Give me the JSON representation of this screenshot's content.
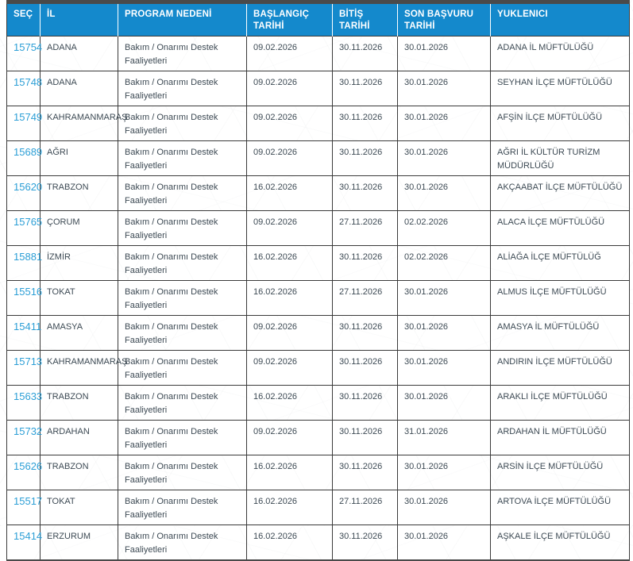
{
  "table": {
    "columns": [
      {
        "key": "sec",
        "label": "SEÇ"
      },
      {
        "key": "il",
        "label": "İL"
      },
      {
        "key": "program",
        "label": "PROGRAM NEDENİ"
      },
      {
        "key": "baslangic",
        "label": "BAŞLANGIÇ TARİHİ"
      },
      {
        "key": "bitis",
        "label": "BİTİŞ TARİHİ"
      },
      {
        "key": "son_basvuru",
        "label": "SON BAŞVURU TARİHİ"
      },
      {
        "key": "yuklenici",
        "label": "YUKLENICI"
      }
    ],
    "rows": [
      {
        "sec": "15754",
        "il": "ADANA",
        "program": "Bakım / Onarımı Destek Faaliyetleri",
        "baslangic": "09.02.2026",
        "bitis": "30.11.2026",
        "son_basvuru": "30.01.2026",
        "yuklenici": "ADANA İL MÜFTÜLÜĞÜ"
      },
      {
        "sec": "15748",
        "il": "ADANA",
        "program": "Bakım / Onarımı Destek Faaliyetleri",
        "baslangic": "09.02.2026",
        "bitis": "30.11.2026",
        "son_basvuru": "30.01.2026",
        "yuklenici": "SEYHAN İLÇE MÜFTÜLÜĞÜ"
      },
      {
        "sec": "15749",
        "il": "KAHRAMANMARAŞ",
        "program": "Bakım / Onarımı Destek Faaliyetleri",
        "baslangic": "09.02.2026",
        "bitis": "30.11.2026",
        "son_basvuru": "30.01.2026",
        "yuklenici": "AFŞİN İLÇE MÜFTÜLÜĞÜ"
      },
      {
        "sec": "15689",
        "il": "AĞRI",
        "program": "Bakım / Onarımı Destek Faaliyetleri",
        "baslangic": "09.02.2026",
        "bitis": "30.11.2026",
        "son_basvuru": "30.01.2026",
        "yuklenici": "AĞRI İL KÜLTÜR TURİZM MÜDÜRLÜĞÜ"
      },
      {
        "sec": "15620",
        "il": "TRABZON",
        "program": "Bakım / Onarımı Destek Faaliyetleri",
        "baslangic": "16.02.2026",
        "bitis": "30.11.2026",
        "son_basvuru": "30.01.2026",
        "yuklenici": "AKÇAABAT İLÇE MÜFTÜLÜĞÜ"
      },
      {
        "sec": "15765",
        "il": "ÇORUM",
        "program": "Bakım / Onarımı Destek Faaliyetleri",
        "baslangic": "09.02.2026",
        "bitis": "27.11.2026",
        "son_basvuru": "02.02.2026",
        "yuklenici": "ALACA İLÇE MÜFTÜLÜĞÜ"
      },
      {
        "sec": "15881",
        "il": "İZMİR",
        "program": "Bakım / Onarımı Destek Faaliyetleri",
        "baslangic": "16.02.2026",
        "bitis": "30.11.2026",
        "son_basvuru": "02.02.2026",
        "yuklenici": "ALİAĞA İLÇE MÜFTÜLÜĞ"
      },
      {
        "sec": "15516",
        "il": "TOKAT",
        "program": "Bakım / Onarımı Destek Faaliyetleri",
        "baslangic": "16.02.2026",
        "bitis": "27.11.2026",
        "son_basvuru": "30.01.2026",
        "yuklenici": "ALMUS İLÇE MÜFTÜLÜĞÜ"
      },
      {
        "sec": "15411",
        "il": "AMASYA",
        "program": "Bakım / Onarımı Destek Faaliyetleri",
        "baslangic": "09.02.2026",
        "bitis": "30.11.2026",
        "son_basvuru": "30.01.2026",
        "yuklenici": "AMASYA İL MÜFTÜLÜĞÜ"
      },
      {
        "sec": "15713",
        "il": "KAHRAMANMARAŞ",
        "program": "Bakım / Onarımı Destek Faaliyetleri",
        "baslangic": "09.02.2026",
        "bitis": "30.11.2026",
        "son_basvuru": "30.01.2026",
        "yuklenici": "ANDIRIN İLÇE MÜFTÜLÜĞÜ"
      },
      {
        "sec": "15633",
        "il": "TRABZON",
        "program": "Bakım / Onarımı Destek Faaliyetleri",
        "baslangic": "16.02.2026",
        "bitis": "30.11.2026",
        "son_basvuru": "30.01.2026",
        "yuklenici": "ARAKLI İLÇE MÜFTÜLÜĞÜ"
      },
      {
        "sec": "15732",
        "il": "ARDAHAN",
        "program": "Bakım / Onarımı Destek Faaliyetleri",
        "baslangic": "09.02.2026",
        "bitis": "30.11.2026",
        "son_basvuru": "31.01.2026",
        "yuklenici": "ARDAHAN İL MÜFTÜLÜĞÜ"
      },
      {
        "sec": "15626",
        "il": "TRABZON",
        "program": "Bakım / Onarımı Destek Faaliyetleri",
        "baslangic": "16.02.2026",
        "bitis": "30.11.2026",
        "son_basvuru": "30.01.2026",
        "yuklenici": "ARSİN İLÇE MÜFTÜLÜĞÜ"
      },
      {
        "sec": "15517",
        "il": "TOKAT",
        "program": "Bakım / Onarımı Destek Faaliyetleri",
        "baslangic": "16.02.2026",
        "bitis": "27.11.2026",
        "son_basvuru": "30.01.2026",
        "yuklenici": "ARTOVA İLÇE MÜFTÜLÜĞÜ"
      },
      {
        "sec": "15414",
        "il": "ERZURUM",
        "program": "Bakım / Onarımı Destek Faaliyetleri",
        "baslangic": "16.02.2026",
        "bitis": "30.11.2026",
        "son_basvuru": "30.01.2026",
        "yuklenici": "AŞKALE İLÇE MÜFTÜLÜĞÜ"
      }
    ]
  },
  "colors": {
    "header_bg": "#1489cc",
    "header_text": "#ffffff",
    "top_border": "#4a4a4a",
    "cell_border": "#3a3a3a",
    "link": "#2d9fd6",
    "body_text": "#3d4a54"
  }
}
